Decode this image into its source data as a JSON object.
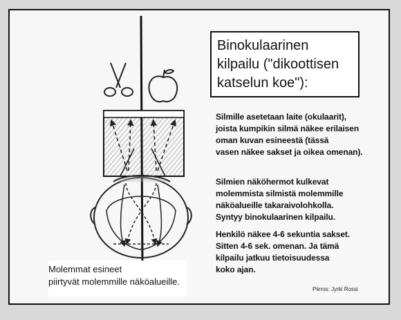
{
  "title": "Binokulaarinen\nkilpailu (\"dikoottisen\nkatselun koe\"):",
  "paragraphs": {
    "p1": "Silmille asetetaan laite (okulaarit),\njoista kumpikin silmä näkee erilaisen\noman kuvan esineestä (tässä\nvasen näkee sakset ja oikea omenan).",
    "p2": "Silmien näköhermot kulkevat\nmolemmista silmistä molemmille\nnäköalueille takaraivolohkolla.\nSyntyy binokulaarinen kilpailu.",
    "p3": "Henkilö näkee 4-6 sekuntia sakset.\nSitten 4-6 sek. omenan. Ja tämä\nkilpailu jatkuu tietoisuudessa\nkoko ajan."
  },
  "caption": "Molemmat esineet\npiirtyvät molemmille näköalueille.",
  "credit": "Piirros: Jyrki Rossi",
  "drawing": {
    "objects": [
      "scissors-icon",
      "apple-icon"
    ],
    "style": "pencil sketch"
  },
  "colors": {
    "ink": "#111111",
    "paper": "#f7f7f7",
    "background": "#d9d9d9"
  }
}
